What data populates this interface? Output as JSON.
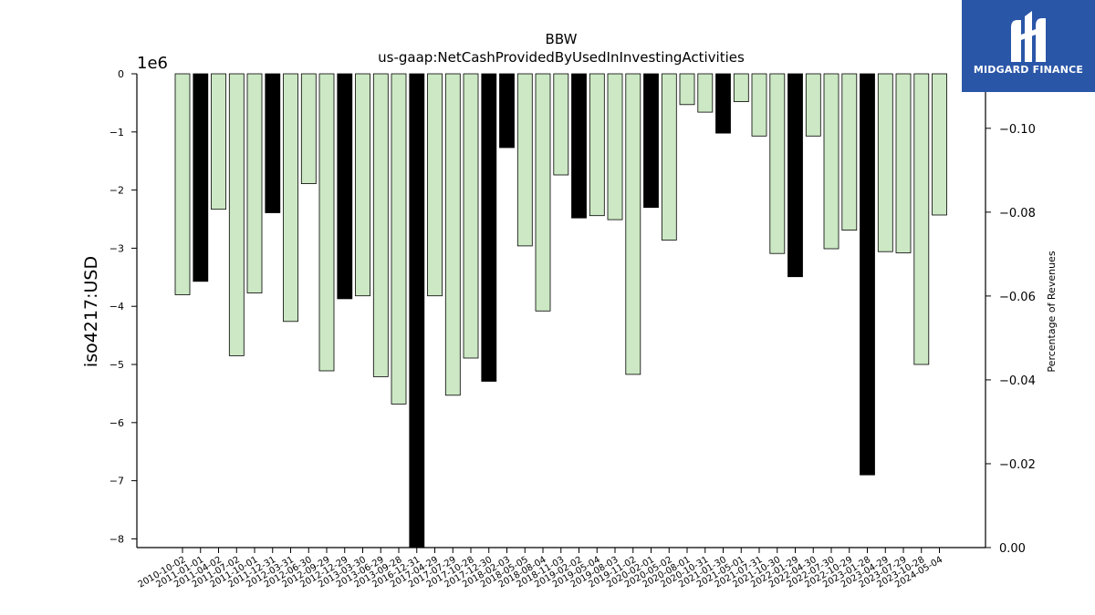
{
  "chart_data": {
    "type": "bar",
    "title": "BBW",
    "subtitle": "us-gaap:NetCashProvidedByUsedInInvestingActivities",
    "ylabel": "iso4217:USD",
    "y_offset_label": "1e6",
    "y2label": "Percentage of Revenues",
    "ylim": [
      -8.15,
      0
    ],
    "y_ticks": [
      0,
      -1,
      -2,
      -3,
      -4,
      -5,
      -6,
      -7,
      -8
    ],
    "y2lim": [
      0.0,
      -0.113
    ],
    "y2_ticks": [
      -0.1,
      -0.08,
      -0.06,
      -0.04,
      -0.02,
      0.0
    ],
    "y2_tick_labels": [
      "−0.10",
      "−0.08",
      "−0.06",
      "−0.04",
      "−0.02",
      "0.00"
    ],
    "grid": false,
    "categories": [
      "2010-10-02",
      "2011-01-01",
      "2011-04-02",
      "2011-07-02",
      "2011-10-01",
      "2011-12-31",
      "2012-03-31",
      "2012-06-30",
      "2012-09-29",
      "2012-12-29",
      "2013-03-30",
      "2013-06-29",
      "2013-09-28",
      "2016-12-31",
      "2017-04-29",
      "2017-07-29",
      "2017-10-28",
      "2017-12-30",
      "2018-02-03",
      "2018-05-05",
      "2018-08-04",
      "2018-11-03",
      "2019-02-02",
      "2019-05-04",
      "2019-08-03",
      "2019-11-02",
      "2020-02-01",
      "2020-05-02",
      "2020-08-01",
      "2020-10-31",
      "2021-01-30",
      "2021-05-01",
      "2021-07-31",
      "2021-10-30",
      "2022-01-29",
      "2022-04-30",
      "2022-07-30",
      "2022-10-29",
      "2023-01-28",
      "2023-04-29",
      "2023-07-29",
      "2023-10-28",
      "2024-05-04"
    ],
    "values": [
      -3.8,
      -3.57,
      -2.33,
      -4.85,
      -3.77,
      -2.39,
      -4.26,
      -1.89,
      -5.11,
      -3.87,
      -3.82,
      -5.21,
      -5.68,
      -8.15,
      -3.82,
      -5.53,
      -4.89,
      -5.29,
      -1.27,
      -2.96,
      -4.08,
      -1.74,
      -2.48,
      -2.44,
      -2.51,
      -5.17,
      -2.3,
      -2.86,
      -0.53,
      -0.66,
      -1.02,
      -0.48,
      -1.07,
      -3.09,
      -3.49,
      -1.07,
      -3.01,
      -2.69,
      -6.9,
      -3.06,
      -3.08,
      -5.0,
      -2.43
    ],
    "highlight": [
      false,
      true,
      false,
      false,
      false,
      true,
      false,
      false,
      false,
      true,
      false,
      false,
      false,
      true,
      false,
      false,
      false,
      true,
      true,
      false,
      false,
      false,
      true,
      false,
      false,
      false,
      true,
      false,
      false,
      false,
      true,
      false,
      false,
      false,
      true,
      false,
      false,
      false,
      true,
      false,
      false,
      false,
      false
    ],
    "colors": {
      "normal": "#cce8c4",
      "highlight": "#000000",
      "edge": "#000000"
    }
  },
  "logo": {
    "text": "MIDGARD FINANCE",
    "background": "#2a56a8"
  }
}
